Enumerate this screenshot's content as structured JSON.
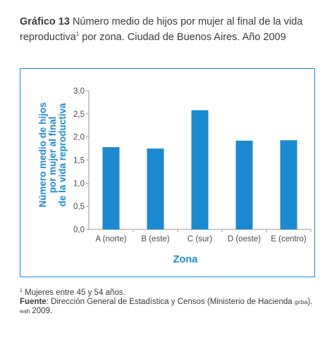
{
  "caption": {
    "lead": "Gráfico 13",
    "text_a": " Número medio de hijos por mujer al final de la vida reproductiva",
    "note_ref": "1",
    "text_b": " por zona. Ciudad de Buenos Aires. Año 2009"
  },
  "colors": {
    "bar": "#1c8ad0",
    "axis": "#9a9a9a",
    "label": "#1c8ad0"
  },
  "chart_data": {
    "type": "bar",
    "title": "",
    "xlabel": "Zona",
    "ylabel_lines": [
      "Número medio de hijos",
      "por mujer al final",
      "de la vida reproductiva"
    ],
    "categories": [
      "A (norte)",
      "B (este)",
      "C (sur)",
      "D (oeste)",
      "E (centro)"
    ],
    "values": [
      1.78,
      1.75,
      2.58,
      1.92,
      1.93
    ],
    "yticks": [
      "0,0",
      "0,5",
      "1,0",
      "1,5",
      "2,0",
      "2,5",
      "3,0"
    ],
    "ylim": [
      0,
      3
    ],
    "grid": false,
    "legend": "none"
  },
  "notes": {
    "footnote_ref": "1",
    "footnote": "Mujeres entre 45 y 54 años.",
    "source_label": "Fuente",
    "source_text_a": ": Dirección General de Estadística y Censos (Ministerio de Hacienda ",
    "source_gcba": "GCBA",
    "source_text_b": "). ",
    "source_eah": "EAH",
    "source_text_c": " 2009."
  }
}
